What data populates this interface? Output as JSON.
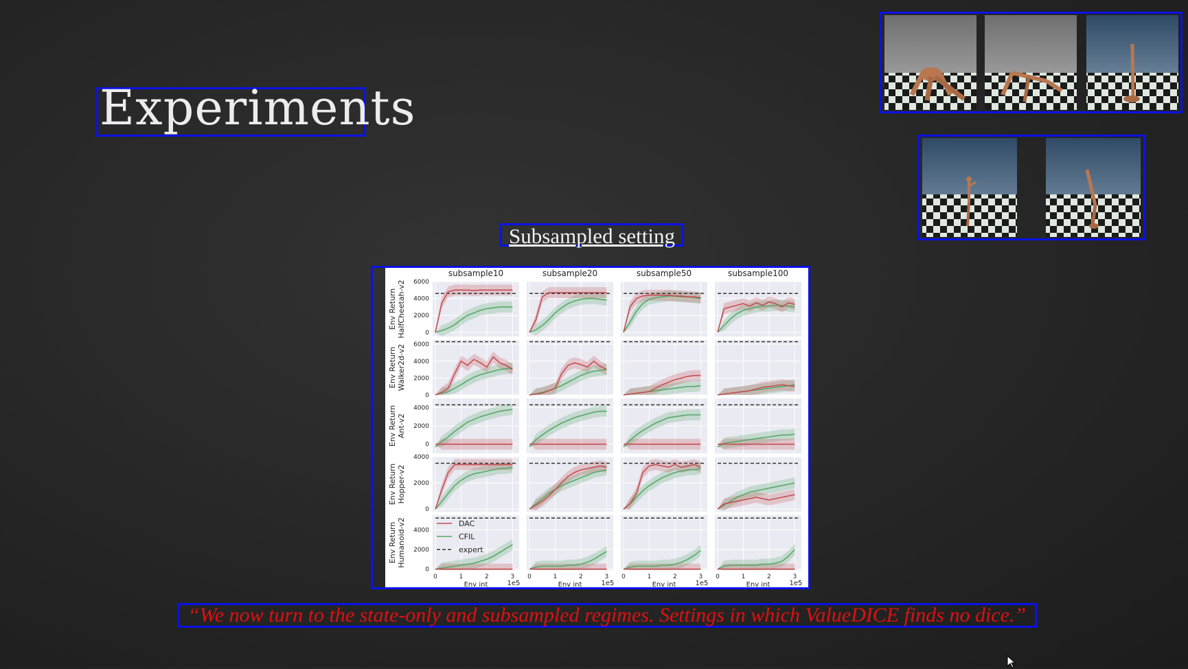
{
  "slide": {
    "title": "Experiments",
    "subtitle": "Subsampled setting",
    "quote": "“We now turn to the state-only and subsampled regimes. Settings in which ValueDICE finds no dice.”"
  },
  "colors": {
    "highlight_box": "#0a12e8",
    "quote_text": "#e01010",
    "dac": "#c44e52",
    "cfil": "#55a868",
    "expert": "#333333",
    "panel_bg": "#eaeaf2"
  },
  "env_images": {
    "top": [
      "ant-robot-render",
      "halfcheetah-robot-render",
      "hopper-robot-render"
    ],
    "bottom": [
      "humanoid-robot-render",
      "walker2d-robot-render"
    ]
  },
  "chart_data": {
    "type": "line",
    "columns": [
      "subsample10",
      "subsample20",
      "subsample50",
      "subsample100"
    ],
    "rows": [
      {
        "env": "HalfCheetah-v2",
        "ylabel": "Env Return",
        "yticks": [
          0,
          2000,
          4000,
          6000
        ],
        "ylim": [
          -500,
          6000
        ],
        "expert": 4600
      },
      {
        "env": "Walker2d-v2",
        "ylabel": "Env Return",
        "yticks": [
          0,
          2000,
          4000,
          6000
        ],
        "ylim": [
          0,
          6500
        ],
        "expert": 6300
      },
      {
        "env": "Ant-v2",
        "ylabel": "Env Return",
        "yticks": [
          0,
          2000,
          4000
        ],
        "ylim": [
          -1000,
          5000
        ],
        "expert": 4300
      },
      {
        "env": "Hopper-v2",
        "ylabel": "Env Return",
        "yticks": [
          0,
          2000,
          4000
        ],
        "ylim": [
          -200,
          4000
        ],
        "expert": 3500
      },
      {
        "env": "Humanoid-v2",
        "ylabel": "Env Return",
        "yticks": [
          0,
          2000,
          4000
        ],
        "ylim": [
          -100,
          5500
        ],
        "expert": 5200
      }
    ],
    "xlabel": "Env int",
    "xticks": [
      0,
      1,
      2,
      3
    ],
    "x_scale_label": "1e5",
    "x": [
      0,
      0.25,
      0.5,
      0.75,
      1.0,
      1.25,
      1.5,
      1.75,
      2.0,
      2.25,
      2.5,
      2.75,
      3.0
    ],
    "legend": [
      "DAC",
      "CFIL",
      "expert"
    ],
    "legend_location": "lower-left panel (Humanoid-v2, subsample10)",
    "series": {
      "DAC": [
        [
          [
            0,
            3500,
            4800,
            5000,
            5000,
            5000,
            4950,
            5000,
            5000,
            5000,
            5000,
            5000,
            5000
          ],
          [
            0,
            1500,
            4200,
            4700,
            4700,
            4700,
            4700,
            4700,
            4700,
            4700,
            4700,
            4700,
            4700
          ],
          [
            0,
            3000,
            4000,
            4300,
            4400,
            4400,
            4400,
            4400,
            4300,
            4300,
            4200,
            4200,
            4100
          ],
          [
            0,
            2800,
            3000,
            3200,
            3400,
            3100,
            3500,
            3200,
            3600,
            3400,
            3000,
            3500,
            3300
          ]
        ],
        [
          [
            0,
            300,
            800,
            2500,
            4000,
            3500,
            4200,
            3800,
            3300,
            4500,
            3800,
            3500,
            3000
          ],
          [
            0,
            100,
            200,
            500,
            800,
            2500,
            3500,
            3800,
            3600,
            3300,
            4000,
            3400,
            3000
          ],
          [
            0,
            100,
            200,
            300,
            400,
            800,
            1200,
            1500,
            1800,
            2000,
            2200,
            2300,
            2300
          ],
          [
            0,
            100,
            200,
            300,
            400,
            500,
            700,
            900,
            1000,
            1100,
            1200,
            1100,
            1000
          ]
        ],
        [
          [
            0,
            0,
            0,
            0,
            0,
            0,
            0,
            0,
            0,
            0,
            0,
            0,
            0
          ],
          [
            0,
            0,
            0,
            0,
            0,
            0,
            0,
            0,
            0,
            0,
            0,
            0,
            0
          ],
          [
            0,
            0,
            0,
            0,
            0,
            0,
            0,
            0,
            0,
            0,
            0,
            0,
            0
          ],
          [
            0,
            0,
            0,
            0,
            0,
            0,
            0,
            0,
            0,
            0,
            0,
            0,
            0
          ]
        ],
        [
          [
            0,
            1500,
            2800,
            3400,
            3400,
            3400,
            3400,
            3400,
            3400,
            3400,
            3400,
            3400,
            3400
          ],
          [
            0,
            300,
            600,
            1000,
            1500,
            2000,
            2500,
            2800,
            3000,
            3100,
            3200,
            3300,
            3200
          ],
          [
            0,
            400,
            1200,
            2800,
            3300,
            3400,
            3300,
            3200,
            3400,
            3200,
            3300,
            3400,
            3200
          ],
          [
            0,
            400,
            500,
            600,
            700,
            800,
            900,
            800,
            700,
            800,
            900,
            1000,
            1100
          ]
        ],
        [
          [
            0,
            0,
            0,
            0,
            0,
            0,
            0,
            0,
            0,
            0,
            0,
            0,
            0
          ],
          [
            0,
            0,
            0,
            0,
            0,
            0,
            0,
            0,
            0,
            0,
            0,
            0,
            0
          ],
          [
            0,
            0,
            0,
            0,
            0,
            0,
            0,
            0,
            0,
            0,
            0,
            0,
            0
          ],
          [
            0,
            0,
            0,
            0,
            0,
            0,
            0,
            0,
            0,
            0,
            0,
            0,
            0
          ]
        ]
      ],
      "CFIL": [
        [
          [
            0,
            200,
            500,
            900,
            1500,
            2000,
            2300,
            2600,
            2800,
            2900,
            3000,
            3000,
            3000
          ],
          [
            0,
            300,
            800,
            1500,
            2300,
            2900,
            3400,
            3700,
            3900,
            4000,
            4000,
            3900,
            3800
          ],
          [
            0,
            1200,
            2500,
            3400,
            3900,
            4100,
            4200,
            4300,
            4300,
            4200,
            4200,
            4100,
            4000
          ],
          [
            0,
            800,
            1600,
            2200,
            2600,
            2800,
            3000,
            3100,
            3100,
            3200,
            3200,
            3100,
            3000
          ]
        ],
        [
          [
            0,
            200,
            400,
            800,
            1200,
            1700,
            2100,
            2400,
            2600,
            2800,
            3000,
            3100,
            3200
          ],
          [
            0,
            150,
            300,
            500,
            800,
            1100,
            1500,
            1900,
            2300,
            2600,
            2800,
            2900,
            3000
          ],
          [
            0,
            100,
            200,
            300,
            400,
            500,
            600,
            700,
            800,
            900,
            1000,
            1000,
            1100
          ],
          [
            0,
            100,
            200,
            300,
            400,
            500,
            600,
            700,
            800,
            900,
            1000,
            1100,
            1200
          ]
        ],
        [
          [
            -300,
            300,
            800,
            1400,
            1900,
            2400,
            2700,
            3000,
            3200,
            3400,
            3600,
            3700,
            3800
          ],
          [
            -300,
            500,
            1000,
            1500,
            1900,
            2300,
            2600,
            2900,
            3100,
            3300,
            3500,
            3600,
            3600
          ],
          [
            -300,
            400,
            1000,
            1500,
            1900,
            2300,
            2600,
            2900,
            3000,
            3100,
            3200,
            3200,
            3200
          ],
          [
            -300,
            100,
            200,
            300,
            400,
            500,
            600,
            700,
            800,
            900,
            1000,
            1000,
            1100
          ]
        ],
        [
          [
            0,
            600,
            1200,
            1800,
            2200,
            2500,
            2700,
            2800,
            2900,
            3000,
            3100,
            3100,
            3200
          ],
          [
            0,
            400,
            800,
            1200,
            1500,
            1800,
            2000,
            2200,
            2400,
            2600,
            2800,
            2900,
            3000
          ],
          [
            0,
            400,
            900,
            1400,
            1800,
            2100,
            2400,
            2600,
            2800,
            2900,
            3000,
            3000,
            3100
          ],
          [
            0,
            300,
            600,
            900,
            1100,
            1300,
            1400,
            1500,
            1600,
            1700,
            1800,
            1900,
            2000
          ]
        ],
        [
          [
            0,
            100,
            200,
            300,
            400,
            500,
            600,
            800,
            1000,
            1300,
            1700,
            2100,
            2500
          ],
          [
            0,
            200,
            300,
            300,
            300,
            300,
            400,
            400,
            500,
            700,
            1000,
            1400,
            1800
          ],
          [
            0,
            200,
            300,
            300,
            300,
            300,
            400,
            400,
            500,
            700,
            1000,
            1400,
            1900
          ],
          [
            0,
            300,
            400,
            400,
            400,
            400,
            400,
            500,
            500,
            600,
            800,
            1300,
            2000
          ]
        ]
      ]
    }
  }
}
